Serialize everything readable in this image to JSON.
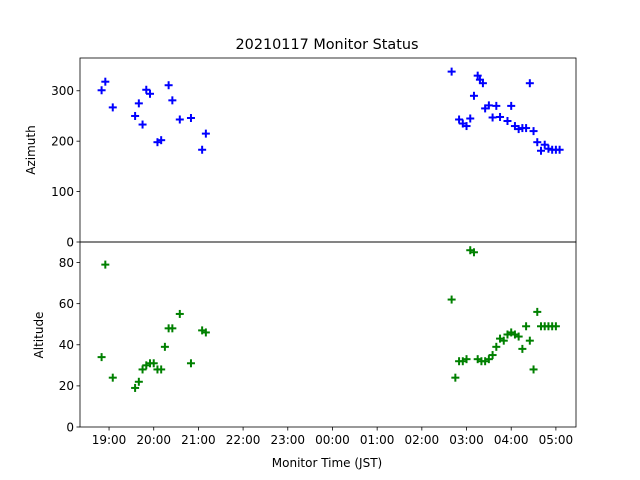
{
  "chart_data": {
    "type": "scatter",
    "title": "20210117 Monitor Status",
    "xlabel": "Monitor Time (JST)",
    "x_ticks": [
      "19:00",
      "20:00",
      "21:00",
      "22:00",
      "23:00",
      "00:00",
      "01:00",
      "02:00",
      "03:00",
      "04:00",
      "05:00"
    ],
    "x_range_hours": [
      18.35,
      5.45
    ],
    "panels": [
      {
        "name": "azimuth",
        "ylabel": "Azimuth",
        "ylim": [
          0,
          365
        ],
        "yticks": [
          "0",
          "100",
          "200",
          "300"
        ],
        "marker": "+",
        "color": "#0000ff",
        "x": [
          "18:50",
          "18:55",
          "19:05",
          "19:35",
          "19:40",
          "19:45",
          "19:50",
          "19:55",
          "20:05",
          "20:10",
          "20:20",
          "20:25",
          "20:35",
          "20:50",
          "21:05",
          "21:10",
          "02:40",
          "02:50",
          "02:55",
          "03:00",
          "03:05",
          "03:10",
          "03:15",
          "03:18",
          "03:22",
          "03:25",
          "03:30",
          "03:35",
          "03:40",
          "03:45",
          "03:55",
          "04:00",
          "04:05",
          "04:10",
          "04:15",
          "04:20",
          "04:25",
          "04:30",
          "04:35",
          "04:40",
          "04:45",
          "04:50",
          "04:55",
          "05:00",
          "05:05"
        ],
        "y": [
          301,
          318,
          267,
          250,
          275,
          233,
          302,
          294,
          198,
          202,
          311,
          281,
          243,
          246,
          183,
          215,
          338,
          243,
          235,
          230,
          245,
          290,
          330,
          322,
          315,
          265,
          271,
          247,
          270,
          248,
          240,
          270,
          230,
          224,
          226,
          226,
          315,
          220,
          198,
          181,
          193,
          185,
          183,
          183,
          183
        ]
      },
      {
        "name": "altitude",
        "ylabel": "Altitude",
        "ylim": [
          0,
          90
        ],
        "yticks": [
          "0",
          "20",
          "40",
          "60",
          "80"
        ],
        "marker": "+",
        "color": "#008000",
        "x": [
          "18:50",
          "18:55",
          "19:05",
          "19:35",
          "19:40",
          "19:45",
          "19:50",
          "19:55",
          "20:00",
          "20:05",
          "20:10",
          "20:15",
          "20:20",
          "20:25",
          "20:35",
          "20:50",
          "21:05",
          "21:10",
          "02:40",
          "02:45",
          "02:50",
          "02:55",
          "03:00",
          "03:05",
          "03:10",
          "03:15",
          "03:20",
          "03:25",
          "03:30",
          "03:35",
          "03:40",
          "03:45",
          "03:50",
          "03:55",
          "04:00",
          "04:05",
          "04:10",
          "04:15",
          "04:20",
          "04:25",
          "04:30",
          "04:35",
          "04:40",
          "04:45",
          "04:50",
          "04:55",
          "05:00"
        ],
        "y": [
          34,
          79,
          24,
          19,
          22,
          28,
          30,
          31,
          31,
          28,
          28,
          39,
          48,
          48,
          55,
          31,
          47,
          46,
          62,
          24,
          32,
          32,
          33,
          86,
          85,
          33,
          32,
          32,
          33,
          35,
          39,
          43,
          42,
          45,
          46,
          45,
          44,
          38,
          49,
          42,
          28,
          56,
          49,
          49,
          49,
          49,
          49
        ]
      }
    ]
  }
}
